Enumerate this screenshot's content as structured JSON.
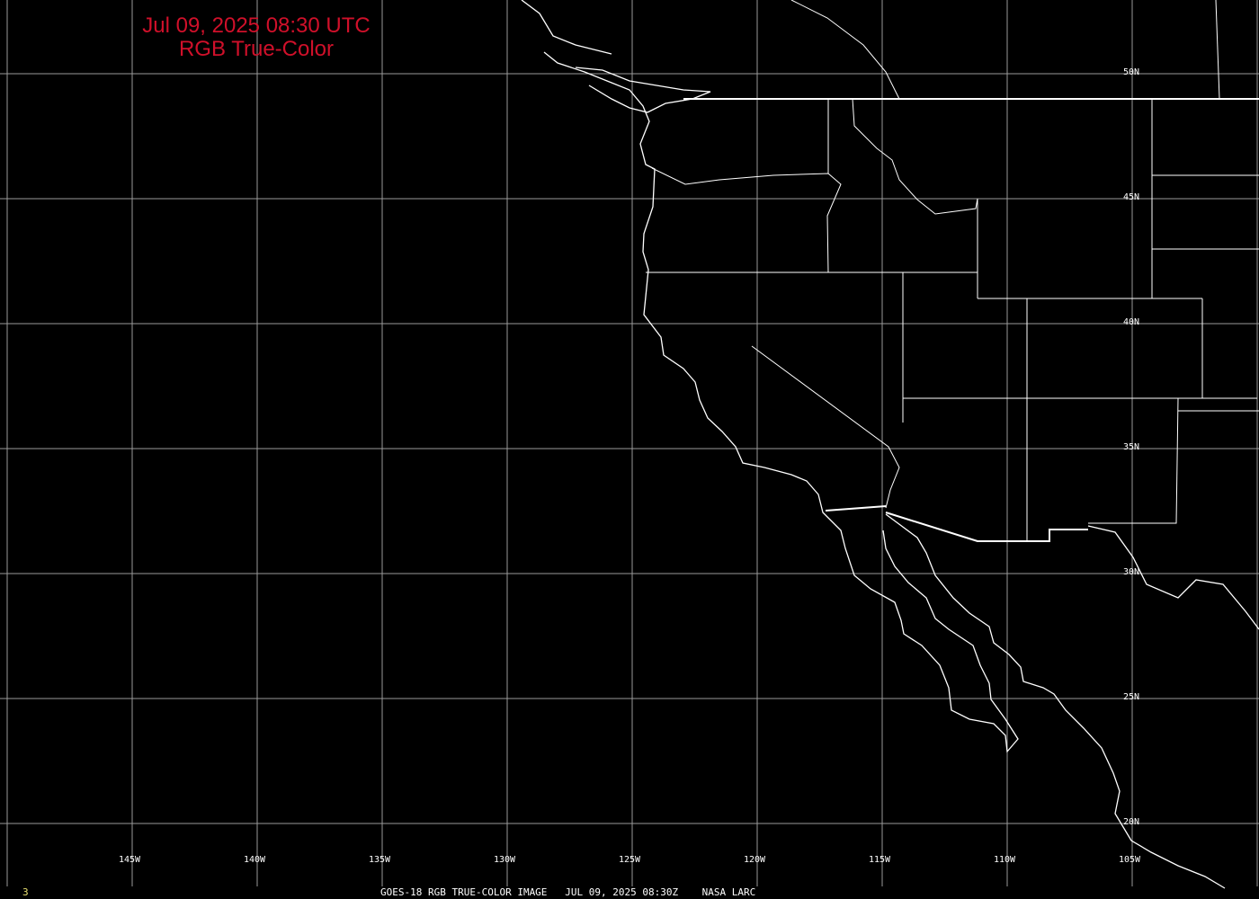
{
  "title": {
    "line1": "Jul 09, 2025 08:30 UTC",
    "line2": "RGB True-Color",
    "color": "#d0102a"
  },
  "longitude_labels": [
    "145W",
    "140W",
    "135W",
    "130W",
    "125W",
    "120W",
    "115W",
    "110W",
    "105W"
  ],
  "latitude_labels": [
    "50N",
    "45N",
    "40N",
    "35N",
    "30N",
    "25N",
    "20N"
  ],
  "footer": {
    "frame_number": "3",
    "caption": "GOES-18 RGB TRUE-COLOR IMAGE   JUL 09, 2025 08:30Z    NASA LARC",
    "frame_color": "#e8e070"
  },
  "colors": {
    "background": "#000000",
    "grid": "#9a9a9a",
    "outlines": "#ffffff"
  }
}
